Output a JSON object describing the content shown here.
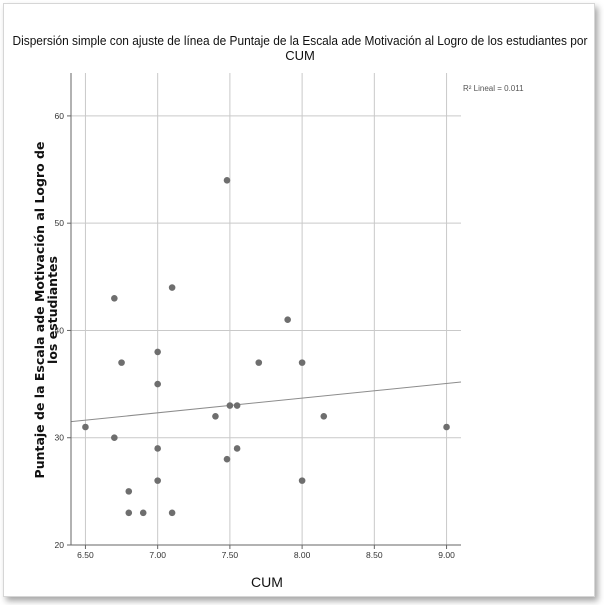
{
  "chart_data": {
    "type": "scatter",
    "title_line1": "Dispersión simple con ajuste de línea de  Puntaje de la Escala ade Motivación al Logro de los estudiantes por",
    "title_line2": "CUM",
    "xlabel": "CUM",
    "ylabel_line1": "Puntaje de la Escala ade Motivación al Logro de",
    "ylabel_line2": "los estudiantes",
    "annotation": "R² Lineal = 0.011",
    "xlim": [
      6.4,
      9.1
    ],
    "ylim": [
      20,
      64
    ],
    "x_ticks": [
      6.5,
      7.0,
      7.5,
      8.0,
      8.5,
      9.0
    ],
    "x_tick_labels": [
      "6.50",
      "7.00",
      "7.50",
      "8.00",
      "8.50",
      "9.00"
    ],
    "y_ticks": [
      20,
      30,
      40,
      50,
      60
    ],
    "y_tick_labels": [
      "20",
      "30",
      "40",
      "50",
      "60"
    ],
    "grid": true,
    "points": [
      {
        "x": 6.5,
        "y": 31
      },
      {
        "x": 6.7,
        "y": 43
      },
      {
        "x": 6.7,
        "y": 30
      },
      {
        "x": 6.75,
        "y": 37
      },
      {
        "x": 6.8,
        "y": 25
      },
      {
        "x": 6.8,
        "y": 23
      },
      {
        "x": 6.9,
        "y": 23
      },
      {
        "x": 7.0,
        "y": 38
      },
      {
        "x": 7.0,
        "y": 35
      },
      {
        "x": 7.0,
        "y": 29
      },
      {
        "x": 7.0,
        "y": 26
      },
      {
        "x": 7.1,
        "y": 44
      },
      {
        "x": 7.1,
        "y": 23
      },
      {
        "x": 7.4,
        "y": 32
      },
      {
        "x": 7.48,
        "y": 54
      },
      {
        "x": 7.48,
        "y": 28
      },
      {
        "x": 7.5,
        "y": 33
      },
      {
        "x": 7.55,
        "y": 33
      },
      {
        "x": 7.55,
        "y": 29
      },
      {
        "x": 7.7,
        "y": 37
      },
      {
        "x": 7.9,
        "y": 41
      },
      {
        "x": 8.0,
        "y": 37
      },
      {
        "x": 8.0,
        "y": 26
      },
      {
        "x": 8.15,
        "y": 32
      },
      {
        "x": 9.0,
        "y": 31
      }
    ],
    "fit_line": {
      "x": [
        6.4,
        9.1
      ],
      "y": [
        31.5,
        35.2
      ]
    },
    "colors": {
      "point": "#6e6e6e",
      "grid": "#c9c9c9",
      "fit": "#8c8c8c",
      "axis": "#666666"
    }
  }
}
